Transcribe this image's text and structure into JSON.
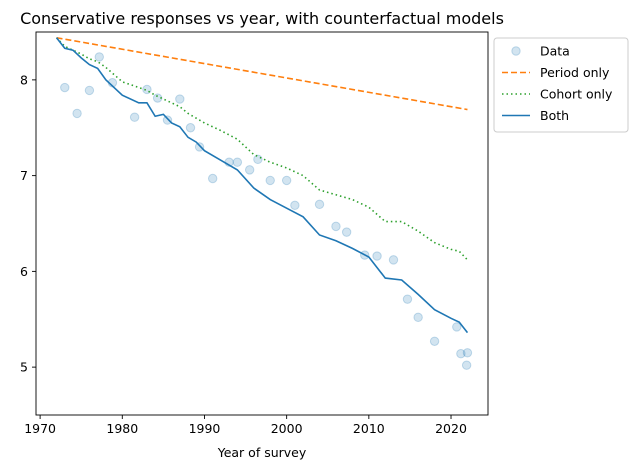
{
  "chart_data": {
    "type": "line",
    "title": "Conservative responses vs year, with counterfactual models",
    "xlabel": "Year of survey",
    "ylabel": "",
    "xlim": [
      1969.5,
      2024.5
    ],
    "ylim": [
      4.5,
      8.5
    ],
    "xticks": [
      1970,
      1980,
      1990,
      2000,
      2010,
      2020
    ],
    "yticks": [
      5,
      6,
      7,
      8
    ],
    "grid": false,
    "legend_placement": "outside-top-right",
    "series": [
      {
        "name": "Data",
        "kind": "scatter",
        "color": "#1f77b4",
        "opacity": 0.2,
        "x": [
          1973,
          1974.5,
          1976,
          1977.2,
          1978.8,
          1981.5,
          1983,
          1984.3,
          1985.5,
          1987,
          1988.3,
          1989.4,
          1991,
          1993,
          1994,
          1995.5,
          1996.5,
          1998,
          2000,
          2001,
          2004,
          2006,
          2007.3,
          2009.5,
          2011,
          2013,
          2014.7,
          2016,
          2018,
          2020.7,
          2021.2,
          2021.9,
          2022
        ],
        "y": [
          7.92,
          7.65,
          7.89,
          8.24,
          7.97,
          7.61,
          7.9,
          7.81,
          7.58,
          7.8,
          7.5,
          7.3,
          6.97,
          7.14,
          7.14,
          7.06,
          7.17,
          6.95,
          6.95,
          6.69,
          6.7,
          6.47,
          6.41,
          6.17,
          6.16,
          6.12,
          5.71,
          5.52,
          5.27,
          5.42,
          5.14,
          5.02,
          5.15
        ]
      },
      {
        "name": "Period only",
        "kind": "line",
        "dash": "dashed",
        "color": "#ff7f0e",
        "x": [
          1972,
          2022
        ],
        "y": [
          8.44,
          7.69
        ]
      },
      {
        "name": "Cohort only",
        "kind": "line",
        "dash": "dotted",
        "color": "#2ca02c",
        "x": [
          1972,
          1973,
          1974,
          1975,
          1976,
          1977,
          1978,
          1980,
          1982,
          1983,
          1984,
          1985,
          1986,
          1987,
          1988,
          1989,
          1990,
          1992,
          1994,
          1996,
          1998,
          2000,
          2002,
          2004,
          2006,
          2008,
          2010,
          2012,
          2014,
          2016,
          2018,
          2020,
          2021,
          2022
        ],
        "y": [
          8.44,
          8.35,
          8.31,
          8.27,
          8.22,
          8.19,
          8.13,
          7.98,
          7.92,
          7.89,
          7.84,
          7.8,
          7.76,
          7.72,
          7.65,
          7.6,
          7.55,
          7.47,
          7.38,
          7.22,
          7.14,
          7.08,
          7.0,
          6.85,
          6.8,
          6.75,
          6.67,
          6.52,
          6.52,
          6.42,
          6.3,
          6.23,
          6.21,
          6.12
        ]
      },
      {
        "name": "Both",
        "kind": "line",
        "dash": "solid",
        "color": "#1f77b4",
        "x": [
          1972,
          1973,
          1974,
          1975,
          1976,
          1977,
          1978,
          1980,
          1982,
          1983,
          1984,
          1985,
          1986,
          1987,
          1988,
          1989,
          1990,
          1992,
          1994,
          1996,
          1998,
          2000,
          2002,
          2004,
          2006,
          2008,
          2010,
          2012,
          2014,
          2016,
          2018,
          2020,
          2021,
          2022
        ],
        "y": [
          8.44,
          8.33,
          8.31,
          8.23,
          8.16,
          8.12,
          8.0,
          7.84,
          7.76,
          7.76,
          7.62,
          7.64,
          7.55,
          7.51,
          7.4,
          7.35,
          7.26,
          7.16,
          7.06,
          6.87,
          6.75,
          6.66,
          6.57,
          6.38,
          6.32,
          6.24,
          6.15,
          5.93,
          5.91,
          5.76,
          5.6,
          5.51,
          5.47,
          5.36
        ]
      }
    ]
  }
}
